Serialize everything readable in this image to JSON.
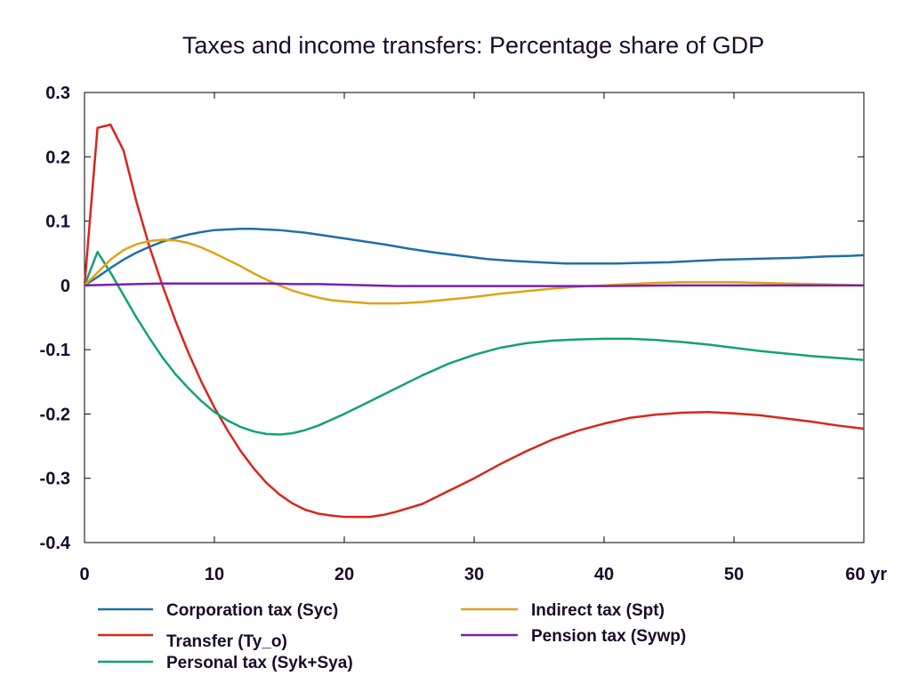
{
  "chart_data": {
    "type": "line",
    "title": "Taxes and income transfers: Percentage share of GDP",
    "xlim": [
      0,
      60
    ],
    "ylim": [
      -0.4,
      0.3
    ],
    "x_ticks": [
      {
        "value": 0,
        "label": "0"
      },
      {
        "value": 10,
        "label": "10"
      },
      {
        "value": 20,
        "label": "20"
      },
      {
        "value": 30,
        "label": "30"
      },
      {
        "value": 40,
        "label": "40"
      },
      {
        "value": 50,
        "label": "50"
      },
      {
        "value": 60,
        "label": "60 yr"
      }
    ],
    "y_ticks": [
      {
        "value": 0.3,
        "label": "0.3"
      },
      {
        "value": 0.2,
        "label": "0.2"
      },
      {
        "value": 0.1,
        "label": "0.1"
      },
      {
        "value": 0,
        "label": "0"
      },
      {
        "value": -0.1,
        "label": "-0.1"
      },
      {
        "value": -0.2,
        "label": "-0.2"
      },
      {
        "value": -0.3,
        "label": "-0.3"
      },
      {
        "value": -0.4,
        "label": "-0.4"
      }
    ],
    "grid": false,
    "legend_position": "bottom",
    "series": [
      {
        "name": "Corporation tax (Syc)",
        "color": "#1f6fa8",
        "x": [
          0,
          1,
          2,
          3,
          4,
          5,
          6,
          7,
          8,
          9,
          10,
          11,
          12,
          13,
          14,
          15,
          17,
          19,
          21,
          23,
          25,
          27,
          29,
          31,
          33,
          35,
          37,
          39,
          41,
          43,
          45,
          47,
          49,
          51,
          53,
          55,
          57,
          59,
          60
        ],
        "y": [
          0,
          0.013,
          0.027,
          0.04,
          0.051,
          0.06,
          0.068,
          0.074,
          0.079,
          0.083,
          0.086,
          0.087,
          0.088,
          0.088,
          0.087,
          0.086,
          0.082,
          0.076,
          0.07,
          0.064,
          0.057,
          0.051,
          0.046,
          0.041,
          0.038,
          0.036,
          0.034,
          0.034,
          0.034,
          0.035,
          0.036,
          0.038,
          0.04,
          0.041,
          0.042,
          0.043,
          0.045,
          0.046,
          0.047
        ]
      },
      {
        "name": "Transfer (Ty_o)",
        "color": "#d8261c",
        "x": [
          0,
          1,
          2,
          3,
          4,
          5,
          6,
          7,
          8,
          9,
          10,
          11,
          12,
          13,
          14,
          15,
          16,
          17,
          18,
          19,
          20,
          21,
          22,
          23,
          24,
          26,
          28,
          30,
          32,
          34,
          36,
          38,
          40,
          42,
          44,
          46,
          48,
          50,
          52,
          54,
          56,
          58,
          60
        ],
        "y": [
          0,
          0.245,
          0.25,
          0.21,
          0.13,
          0.06,
          0.0,
          -0.055,
          -0.105,
          -0.15,
          -0.19,
          -0.225,
          -0.257,
          -0.284,
          -0.307,
          -0.325,
          -0.339,
          -0.349,
          -0.355,
          -0.358,
          -0.36,
          -0.36,
          -0.36,
          -0.357,
          -0.352,
          -0.34,
          -0.32,
          -0.3,
          -0.278,
          -0.258,
          -0.24,
          -0.226,
          -0.215,
          -0.206,
          -0.201,
          -0.198,
          -0.197,
          -0.199,
          -0.202,
          -0.207,
          -0.212,
          -0.218,
          -0.223
        ]
      },
      {
        "name": "Personal tax (Syk+Sya)",
        "color": "#14a07a",
        "x": [
          0,
          1,
          2,
          3,
          4,
          5,
          6,
          7,
          8,
          9,
          10,
          11,
          12,
          13,
          14,
          15,
          16,
          17,
          18,
          19,
          20,
          22,
          24,
          26,
          28,
          30,
          32,
          34,
          36,
          38,
          40,
          42,
          44,
          46,
          48,
          50,
          52,
          54,
          56,
          58,
          60
        ],
        "y": [
          0,
          0.052,
          0.02,
          -0.015,
          -0.05,
          -0.082,
          -0.112,
          -0.138,
          -0.16,
          -0.18,
          -0.197,
          -0.21,
          -0.22,
          -0.227,
          -0.231,
          -0.232,
          -0.23,
          -0.225,
          -0.218,
          -0.209,
          -0.2,
          -0.18,
          -0.16,
          -0.14,
          -0.122,
          -0.108,
          -0.097,
          -0.09,
          -0.086,
          -0.084,
          -0.083,
          -0.083,
          -0.085,
          -0.088,
          -0.092,
          -0.097,
          -0.102,
          -0.106,
          -0.11,
          -0.113,
          -0.116
        ]
      },
      {
        "name": "Indirect tax (Spt)",
        "color": "#e0a219",
        "x": [
          0,
          1,
          2,
          3,
          4,
          5,
          6,
          7,
          8,
          9,
          10,
          11,
          12,
          13,
          14,
          15,
          16,
          17,
          18,
          19,
          20,
          22,
          24,
          26,
          28,
          30,
          32,
          34,
          36,
          38,
          40,
          42,
          44,
          46,
          48,
          50,
          52,
          54,
          56,
          58,
          60
        ],
        "y": [
          0,
          0.02,
          0.04,
          0.055,
          0.064,
          0.069,
          0.071,
          0.07,
          0.066,
          0.059,
          0.05,
          0.04,
          0.03,
          0.019,
          0.009,
          0.0,
          -0.008,
          -0.014,
          -0.019,
          -0.023,
          -0.025,
          -0.028,
          -0.028,
          -0.026,
          -0.022,
          -0.018,
          -0.013,
          -0.009,
          -0.005,
          -0.002,
          0.0,
          0.002,
          0.004,
          0.005,
          0.005,
          0.005,
          0.004,
          0.003,
          0.002,
          0.001,
          0.0
        ]
      },
      {
        "name": "Pension tax (Sywp)",
        "color": "#7a1fb0",
        "x": [
          0,
          2,
          4,
          6,
          8,
          10,
          12,
          14,
          16,
          18,
          20,
          22,
          24,
          26,
          28,
          30,
          35,
          40,
          45,
          50,
          55,
          60
        ],
        "y": [
          0,
          0.001,
          0.002,
          0.003,
          0.003,
          0.003,
          0.003,
          0.003,
          0.002,
          0.002,
          0.001,
          0.0,
          -0.001,
          -0.001,
          -0.001,
          -0.001,
          -0.001,
          -0.001,
          0.0,
          0.0,
          0.0,
          0.0
        ]
      }
    ]
  }
}
